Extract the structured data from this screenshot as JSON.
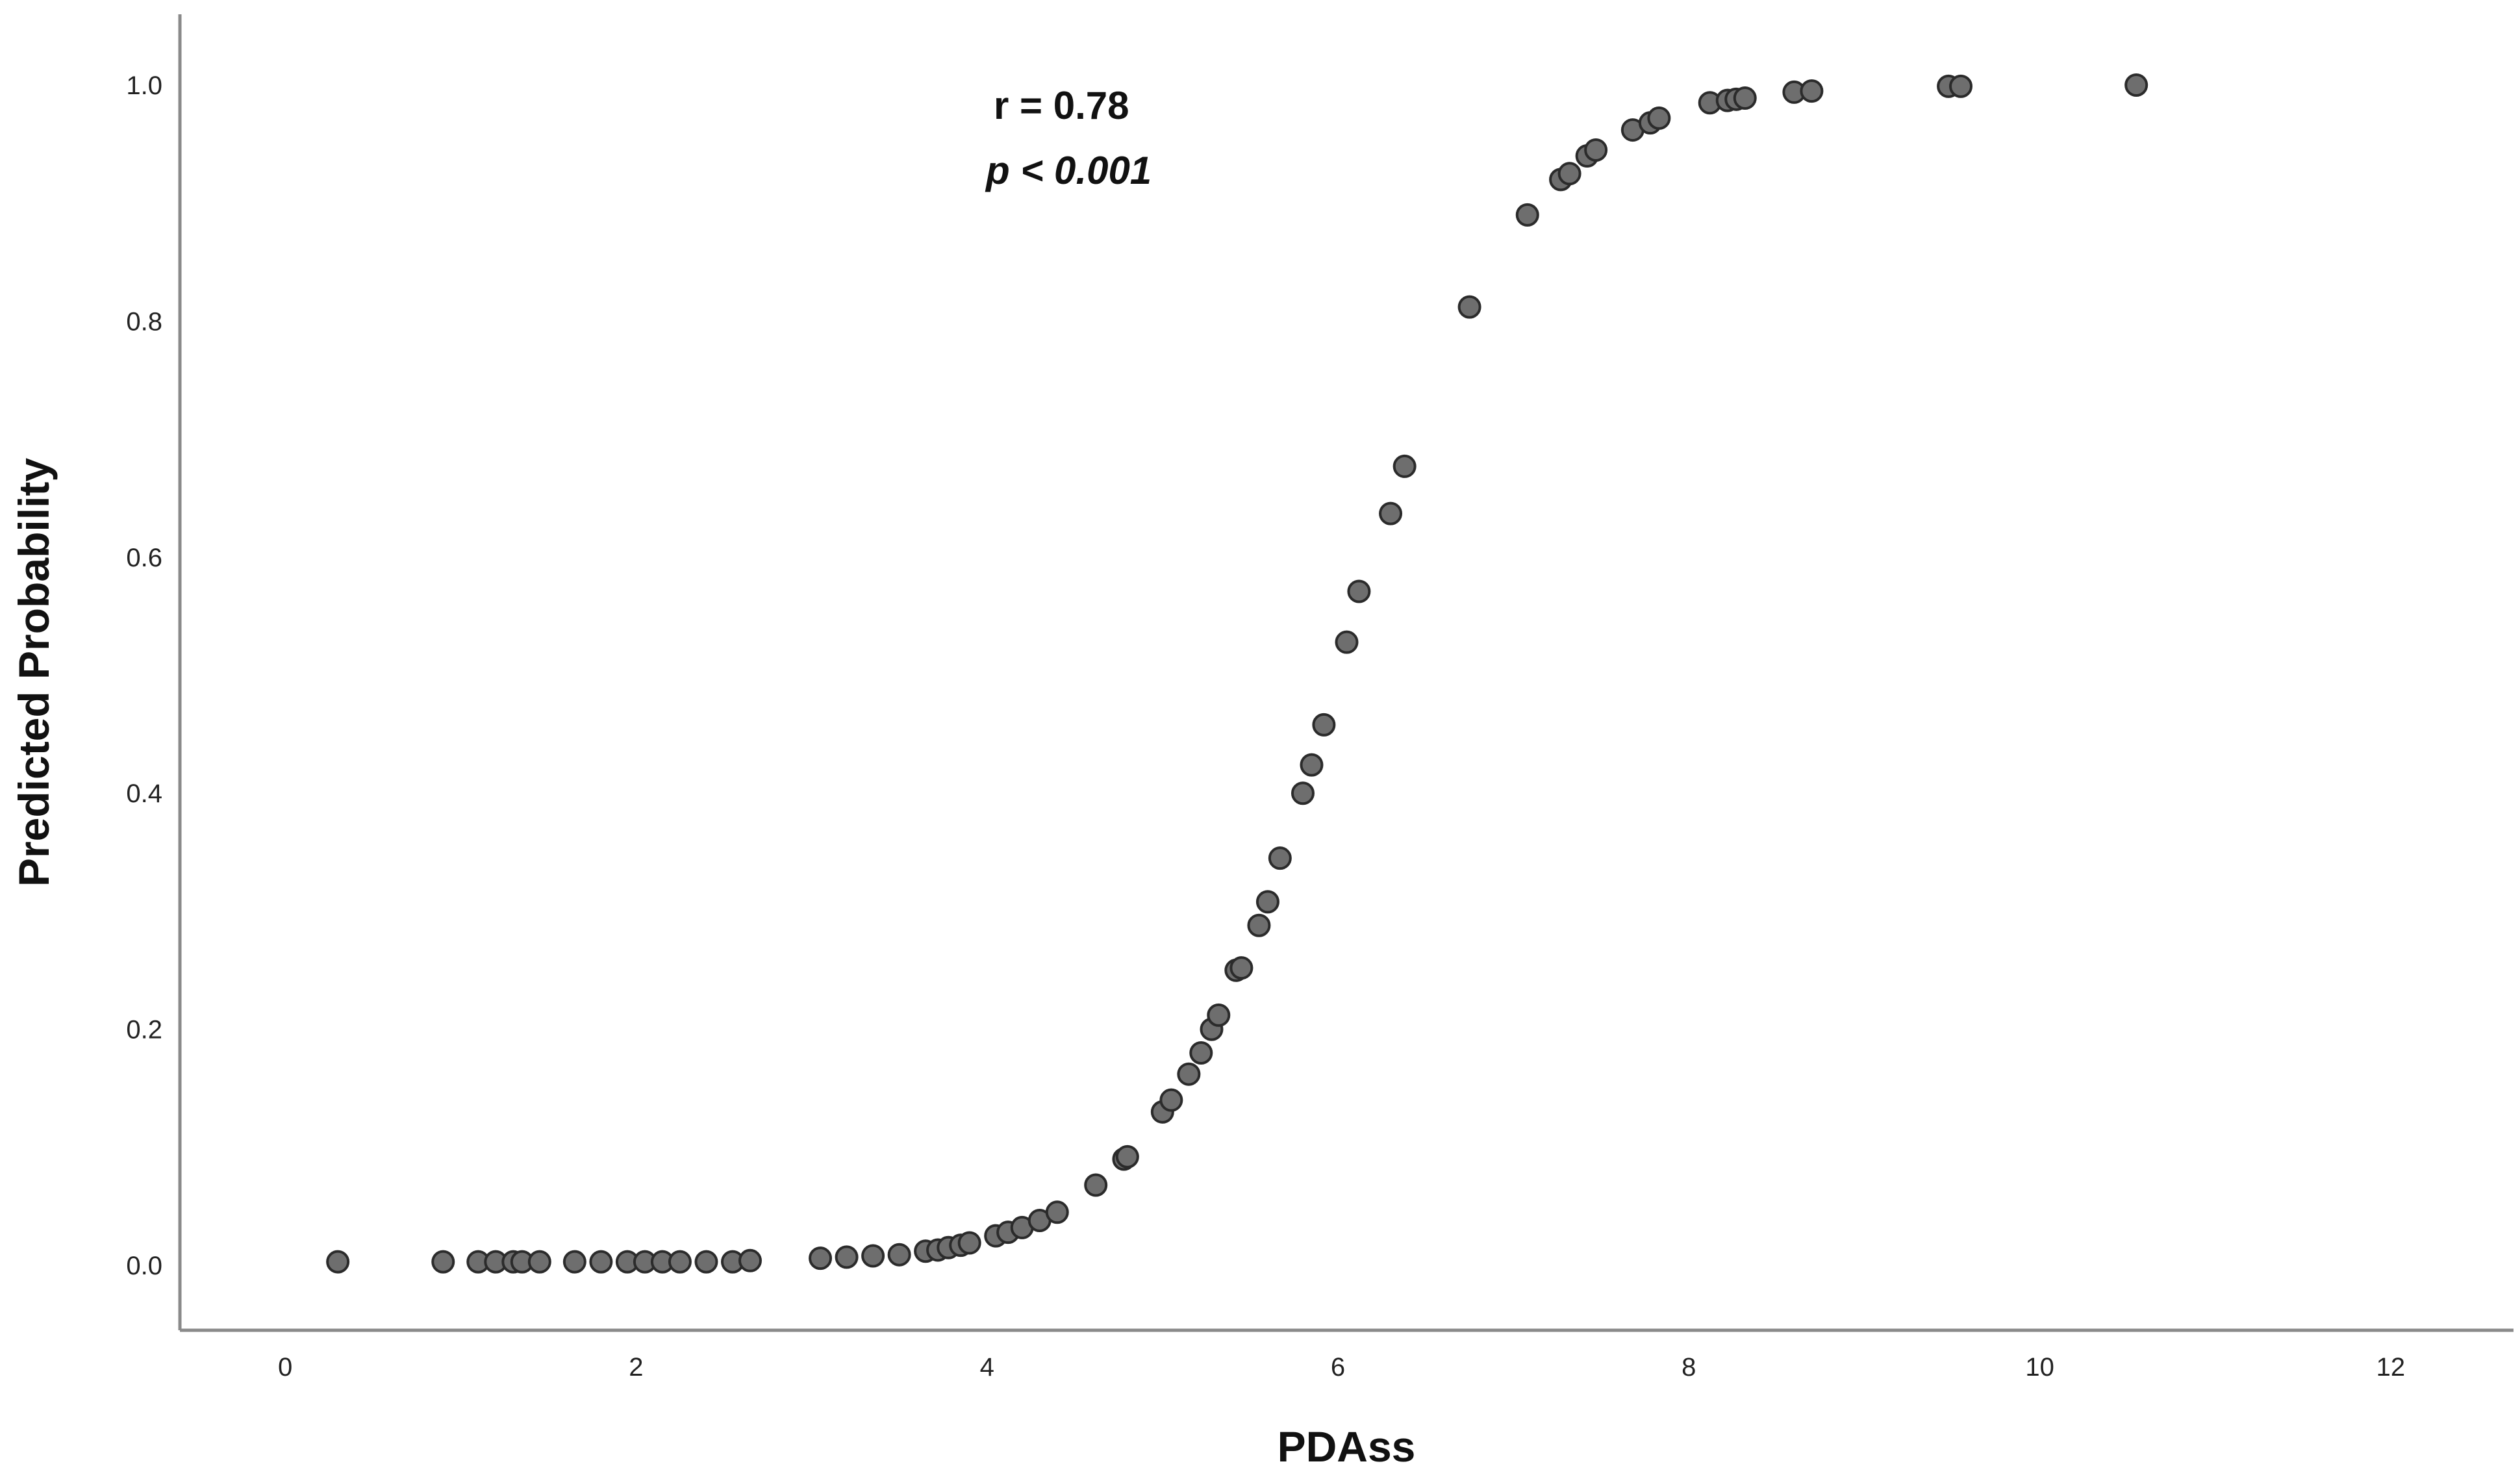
{
  "chart_data": {
    "type": "scatter",
    "title": "",
    "xlabel": "PDAss",
    "ylabel": "Predicted Probability",
    "xlim": [
      -0.6,
      12.7
    ],
    "ylim": [
      -0.055,
      1.06
    ],
    "x_ticks": [
      0,
      2,
      4,
      6,
      8,
      10,
      12
    ],
    "x_tick_labels": [
      "0",
      "2",
      "4",
      "6",
      "8",
      "10",
      "12"
    ],
    "y_ticks": [
      0.0,
      0.2,
      0.4,
      0.6,
      0.8,
      1.0
    ],
    "y_tick_labels": [
      "0.0",
      "0.2",
      "0.4",
      "0.6",
      "0.8",
      "1.0"
    ],
    "grid": false,
    "annotations": [
      {
        "text": "r = 0.78",
        "style": "bold"
      },
      {
        "text": "p < 0.001",
        "style": "bold-italic"
      }
    ],
    "marker_color": "#6e6e6e",
    "marker_edge": "#2b2b2b",
    "axis_color": "#8a8a8a",
    "series": [
      {
        "x": [
          0.3,
          0.9,
          1.1,
          1.2,
          1.3,
          1.35,
          1.45,
          1.65,
          1.8,
          1.95,
          2.05,
          2.15,
          2.25,
          2.4,
          2.55,
          2.65,
          3.05,
          3.2,
          3.35,
          3.5,
          3.65,
          3.72,
          3.78,
          3.85,
          3.9,
          4.05,
          4.12,
          4.2,
          4.3,
          4.4,
          4.62,
          4.78,
          4.8,
          5.0,
          5.05,
          5.15,
          5.22,
          5.28,
          5.32,
          5.42,
          5.45,
          5.55,
          5.6,
          5.67,
          5.8,
          5.85,
          5.92,
          6.05,
          6.12,
          6.3,
          6.38,
          6.75,
          7.08,
          7.27,
          7.32,
          7.42,
          7.47,
          7.68,
          7.78,
          7.83,
          8.12,
          8.22,
          8.27,
          8.32,
          8.6,
          8.7,
          9.48,
          9.55,
          10.55
        ],
        "y": [
          0.003,
          0.003,
          0.003,
          0.003,
          0.003,
          0.003,
          0.003,
          0.003,
          0.003,
          0.003,
          0.003,
          0.003,
          0.003,
          0.003,
          0.003,
          0.004,
          0.006,
          0.007,
          0.008,
          0.009,
          0.012,
          0.013,
          0.015,
          0.017,
          0.019,
          0.025,
          0.028,
          0.032,
          0.038,
          0.045,
          0.068,
          0.09,
          0.092,
          0.13,
          0.14,
          0.162,
          0.18,
          0.2,
          0.212,
          0.25,
          0.252,
          0.288,
          0.308,
          0.345,
          0.4,
          0.424,
          0.458,
          0.528,
          0.571,
          0.637,
          0.677,
          0.812,
          0.89,
          0.92,
          0.925,
          0.94,
          0.945,
          0.962,
          0.968,
          0.972,
          0.985,
          0.987,
          0.988,
          0.989,
          0.994,
          0.995,
          0.999,
          0.999,
          1.0
        ]
      }
    ]
  }
}
